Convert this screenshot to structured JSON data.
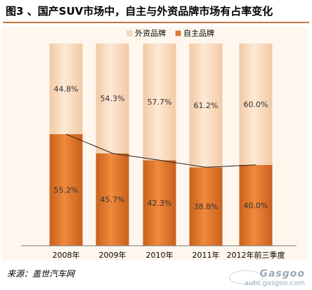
{
  "chart_data": {
    "type": "bar",
    "stacked": true,
    "title": "图3 、国产SUV市场中，自主与外资品牌市场有占率变化",
    "categories": [
      "2008年",
      "2009年",
      "2010年",
      "2011年",
      "2012年前三季度"
    ],
    "series": [
      {
        "name": "自主品牌",
        "values": [
          55.2,
          45.7,
          42.3,
          38.8,
          40.0
        ],
        "labels": [
          "55.2%",
          "45.7%",
          "42.3%",
          "38.8%",
          "40.0%"
        ],
        "color": "#e07a2e"
      },
      {
        "name": "外资品牌",
        "values": [
          44.8,
          54.3,
          57.7,
          61.2,
          60.0
        ],
        "labels": [
          "44.8%",
          "54.3%",
          "57.7%",
          "61.2%",
          "60.0%"
        ],
        "color": "#f9dcc0"
      }
    ],
    "ylim": [
      0,
      100
    ],
    "grid": false,
    "legend_position": "top",
    "connector_line": true
  },
  "source": "来源：盖世汽车网",
  "watermark": {
    "logo": "Gasgoo",
    "url": "auto.gasgoo.com"
  }
}
